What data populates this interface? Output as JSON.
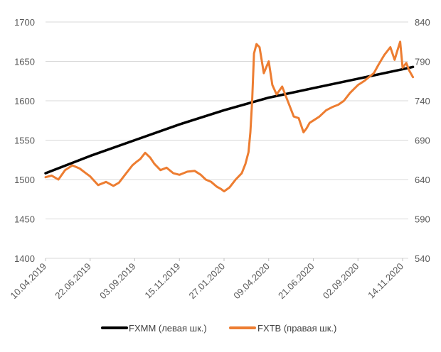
{
  "chart_data": {
    "type": "line",
    "x_tick_labels": [
      "10.04.2019",
      "22.06.2019",
      "03.09.2019",
      "15.11.2019",
      "27.01.2020",
      "09.04.2020",
      "21.06.2020",
      "02.09.2020",
      "14.11.2020"
    ],
    "y_left": {
      "range": [
        1400,
        1700
      ],
      "ticks": [
        "1400",
        "1450",
        "1500",
        "1550",
        "1600",
        "1650",
        "1700"
      ]
    },
    "y_right": {
      "range": [
        540,
        840
      ],
      "ticks": [
        "540",
        "590",
        "640",
        "690",
        "740",
        "790",
        "840"
      ]
    },
    "grid": true,
    "legend_position": "bottom",
    "series": [
      {
        "name": "FXMM (левая шк.)",
        "axis": "left",
        "color": "#000000",
        "x": [
          "2019-04-10",
          "2019-06-22",
          "2019-09-03",
          "2019-11-15",
          "2020-01-27",
          "2020-04-09",
          "2020-06-21",
          "2020-09-02",
          "2020-11-14",
          "2020-12-01"
        ],
        "values": [
          1508,
          1530,
          1550,
          1570,
          1588,
          1604,
          1616,
          1628,
          1640,
          1643
        ]
      },
      {
        "name": "FXTB (правая шк.)",
        "axis": "right",
        "color": "#ED7D31",
        "x": [
          "2019-04-10",
          "2019-04-20",
          "2019-05-01",
          "2019-05-12",
          "2019-05-24",
          "2019-06-05",
          "2019-06-15",
          "2019-06-22",
          "2019-07-05",
          "2019-07-18",
          "2019-07-30",
          "2019-08-08",
          "2019-08-20",
          "2019-08-30",
          "2019-09-05",
          "2019-09-12",
          "2019-09-20",
          "2019-09-28",
          "2019-10-05",
          "2019-10-15",
          "2019-10-25",
          "2019-11-05",
          "2019-11-15",
          "2019-11-28",
          "2019-12-10",
          "2019-12-20",
          "2019-12-28",
          "2020-01-06",
          "2020-01-15",
          "2020-01-22",
          "2020-01-27",
          "2020-02-05",
          "2020-02-15",
          "2020-02-25",
          "2020-03-02",
          "2020-03-07",
          "2020-03-10",
          "2020-03-13",
          "2020-03-16",
          "2020-03-20",
          "2020-03-25",
          "2020-04-01",
          "2020-04-09",
          "2020-04-15",
          "2020-04-22",
          "2020-05-01",
          "2020-05-10",
          "2020-05-20",
          "2020-05-28",
          "2020-06-05",
          "2020-06-10",
          "2020-06-15",
          "2020-06-21",
          "2020-07-01",
          "2020-07-12",
          "2020-07-22",
          "2020-08-01",
          "2020-08-10",
          "2020-08-20",
          "2020-09-02",
          "2020-09-12",
          "2020-09-20",
          "2020-09-28",
          "2020-10-05",
          "2020-10-15",
          "2020-10-25",
          "2020-11-01",
          "2020-11-06",
          "2020-11-10",
          "2020-11-14",
          "2020-11-20",
          "2020-11-25",
          "2020-12-01"
        ],
        "values": [
          643,
          645,
          640,
          652,
          658,
          654,
          648,
          644,
          633,
          637,
          632,
          636,
          648,
          658,
          662,
          666,
          674,
          668,
          660,
          652,
          655,
          648,
          646,
          650,
          651,
          646,
          640,
          637,
          631,
          628,
          625,
          630,
          640,
          648,
          660,
          675,
          700,
          740,
          800,
          812,
          808,
          775,
          790,
          760,
          748,
          758,
          740,
          720,
          718,
          700,
          705,
          712,
          715,
          720,
          728,
          732,
          735,
          740,
          750,
          760,
          765,
          770,
          775,
          785,
          798,
          808,
          792,
          805,
          815,
          782,
          788,
          778,
          770
        ]
      }
    ]
  }
}
